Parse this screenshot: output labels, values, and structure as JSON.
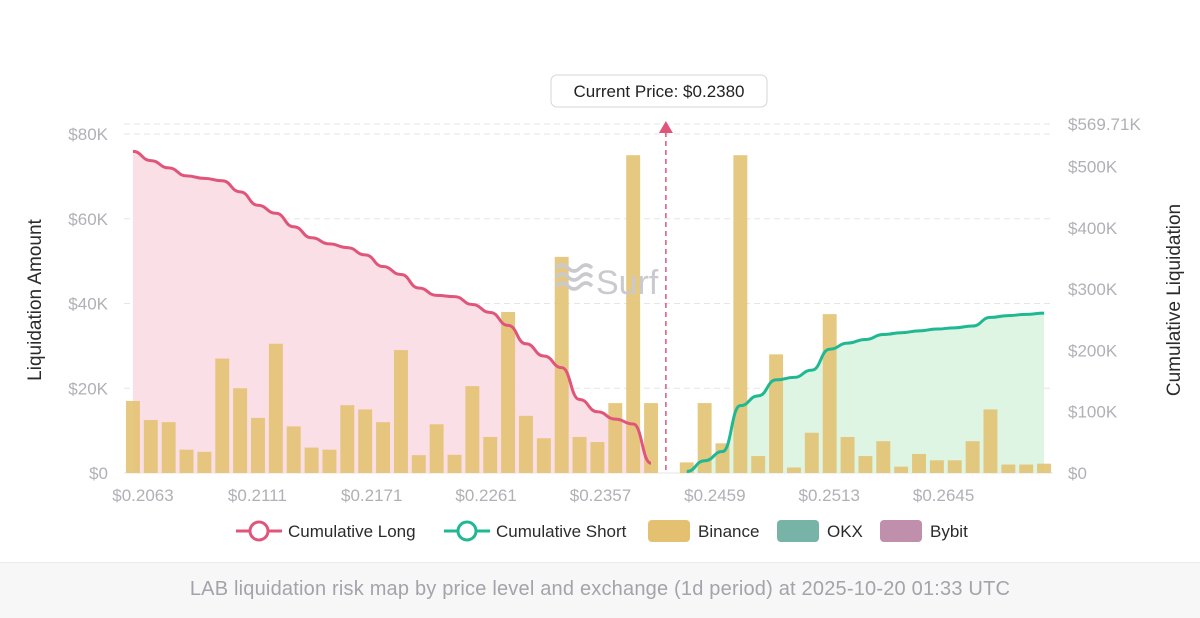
{
  "chart_data": {
    "type": "bar",
    "title": "",
    "ylabel": "Liquidation Amount",
    "y2label": "Cumulative Liquidation",
    "ylim": [
      0,
      80000
    ],
    "y_ticks": [
      "$0",
      "$20K",
      "$40K",
      "$60K",
      "$80K"
    ],
    "y2lim": [
      0,
      569710
    ],
    "y2_ticks": [
      "$0",
      "$100K",
      "$200K",
      "$300K",
      "$400K",
      "$500K",
      "$569.71K"
    ],
    "x_tick_labels": [
      "$0.2063",
      "$0.2111",
      "$0.2171",
      "$0.2261",
      "$0.2357",
      "$0.2459",
      "$0.2513",
      "$0.2645"
    ],
    "current_price_label": "Current Price: $0.2380",
    "watermark": "Surf",
    "legend": [
      "Cumulative Long",
      "Cumulative Short",
      "Binance",
      "OKX",
      "Bybit"
    ],
    "colors": {
      "long": "#e0557a",
      "long_fill": "#fbdde5",
      "short": "#1fb892",
      "short_fill": "#dcf4e3",
      "binance": "#e3c170",
      "okx": "#78b3a8",
      "bybit": "#bf8fab"
    },
    "series": [
      {
        "name": "Binance",
        "type": "bar",
        "values": [
          17000,
          12500,
          12000,
          5500,
          5000,
          27000,
          20000,
          13000,
          30500,
          11000,
          6000,
          5500,
          16000,
          15000,
          12000,
          29000,
          4200,
          11500,
          4300,
          20500,
          8500,
          38000,
          13500,
          8200,
          51000,
          8500,
          7300,
          16500,
          75000,
          16500,
          null,
          2500,
          16500,
          7000,
          75000,
          4000,
          28000,
          1300,
          9500,
          37500,
          8500,
          4000,
          7500,
          1500,
          4500,
          3000,
          3000,
          7500,
          15000,
          2000,
          2000,
          2200
        ]
      },
      {
        "name": "Cumulative Long",
        "type": "line",
        "axis": "right",
        "values": [
          525000,
          510000,
          498000,
          485000,
          481000,
          477000,
          459000,
          437000,
          424000,
          402000,
          384000,
          374000,
          368000,
          356000,
          337000,
          324000,
          302000,
          290000,
          288000,
          275000,
          262000,
          241000,
          211000,
          191000,
          172000,
          120000,
          100000,
          88000,
          80000,
          16000,
          null,
          null,
          null,
          null,
          null,
          null,
          null,
          null,
          null,
          null,
          null,
          null,
          null,
          null,
          null,
          null,
          null,
          null,
          null,
          null,
          null,
          null
        ]
      },
      {
        "name": "Cumulative Short",
        "type": "line",
        "axis": "right",
        "values": [
          null,
          null,
          null,
          null,
          null,
          null,
          null,
          null,
          null,
          null,
          null,
          null,
          null,
          null,
          null,
          null,
          null,
          null,
          null,
          null,
          null,
          null,
          null,
          null,
          null,
          null,
          null,
          null,
          null,
          null,
          null,
          2500,
          20000,
          35000,
          110000,
          126000,
          152000,
          156000,
          168000,
          202000,
          212000,
          218000,
          226000,
          229000,
          232000,
          235000,
          237000,
          240000,
          254000,
          257000,
          259000,
          261000
        ]
      }
    ]
  },
  "caption": "LAB liquidation risk map by price level and exchange (1d period) at 2025-10-20 01:33 UTC"
}
